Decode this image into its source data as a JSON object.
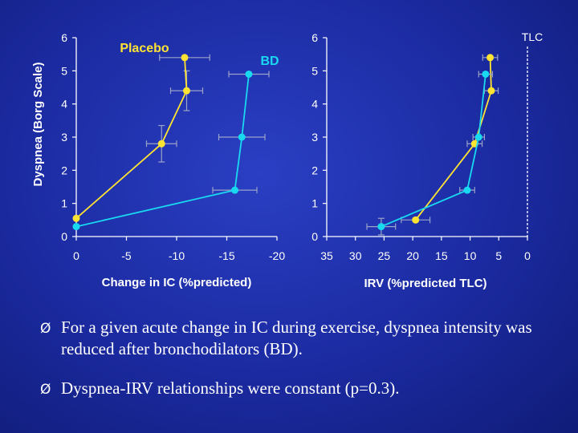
{
  "chart_data": [
    {
      "type": "line",
      "xlabel": "Change in IC (%predicted)",
      "ylabel": "Dyspnea (Borg Scale)",
      "xlim": [
        0,
        -20
      ],
      "ylim": [
        0,
        6
      ],
      "x_ticks": [
        "0",
        "-5",
        "-10",
        "-15",
        "-20"
      ],
      "y_ticks": [
        "0",
        "1",
        "2",
        "3",
        "4",
        "5",
        "6"
      ],
      "series": [
        {
          "name": "Placebo",
          "color": "#ffe333",
          "points": [
            {
              "x": 0,
              "y": 0.55,
              "xerr": 0,
              "yerr": 0
            },
            {
              "x": -8.5,
              "y": 2.8,
              "xerr": 1.5,
              "yerr": 0.55
            },
            {
              "x": -11.0,
              "y": 4.4,
              "xerr": 1.6,
              "yerr": 0.6
            },
            {
              "x": -10.8,
              "y": 5.4,
              "xerr": 2.5,
              "yerr": 0
            }
          ]
        },
        {
          "name": "BD",
          "color": "#19d9f0",
          "points": [
            {
              "x": 0,
              "y": 0.3,
              "xerr": 0,
              "yerr": 0
            },
            {
              "x": -15.8,
              "y": 1.4,
              "xerr": 2.2,
              "yerr": 0
            },
            {
              "x": -16.5,
              "y": 3.0,
              "xerr": 2.3,
              "yerr": 0
            },
            {
              "x": -17.2,
              "y": 4.9,
              "xerr": 2.0,
              "yerr": 0
            }
          ]
        }
      ]
    },
    {
      "type": "line",
      "xlabel": "IRV (%predicted TLC)",
      "ylabel": "",
      "xlim": [
        35,
        0
      ],
      "ylim": [
        0,
        6
      ],
      "x_ticks": [
        "35",
        "30",
        "25",
        "20",
        "15",
        "10",
        "5",
        "0"
      ],
      "y_ticks": [
        "0",
        "1",
        "2",
        "3",
        "4",
        "5",
        "6"
      ],
      "annotations": [
        {
          "text": "TLC",
          "x": 0
        }
      ],
      "series": [
        {
          "name": "Placebo",
          "color": "#ffe333",
          "points": [
            {
              "x": 19.5,
              "y": 0.5,
              "xerr": 2.5,
              "yerr": 0.05
            },
            {
              "x": 9.2,
              "y": 2.8,
              "xerr": 1.3,
              "yerr": 0
            },
            {
              "x": 6.3,
              "y": 4.4,
              "xerr": 1.2,
              "yerr": 0
            },
            {
              "x": 6.5,
              "y": 5.4,
              "xerr": 1.3,
              "yerr": 0
            }
          ]
        },
        {
          "name": "BD",
          "color": "#19d9f0",
          "points": [
            {
              "x": 25.5,
              "y": 0.3,
              "xerr": 2.5,
              "yerr": 0.25
            },
            {
              "x": 10.5,
              "y": 1.4,
              "xerr": 1.3,
              "yerr": 0
            },
            {
              "x": 8.5,
              "y": 3.0,
              "xerr": 1.0,
              "yerr": 0
            },
            {
              "x": 7.3,
              "y": 4.9,
              "xerr": 1.2,
              "yerr": 0
            }
          ]
        }
      ]
    }
  ],
  "legend": {
    "placebo_label": "Placebo",
    "bd_label": "BD"
  },
  "bullets": [
    "For a given acute change in IC during exercise, dyspnea intensity was reduced after bronchodilators (BD).",
    "Dyspnea-IRV relationships were constant (p=0.3)."
  ],
  "bullet_marker": "Ø",
  "colors": {
    "axis": "#ffffff",
    "label": "#ffffff",
    "error_bar": "#9aa3c8",
    "placebo": "#ffe333",
    "bd": "#19d9f0",
    "legend_placebo_text": "#ffe333",
    "legend_bd_text": "#19d9f0"
  }
}
